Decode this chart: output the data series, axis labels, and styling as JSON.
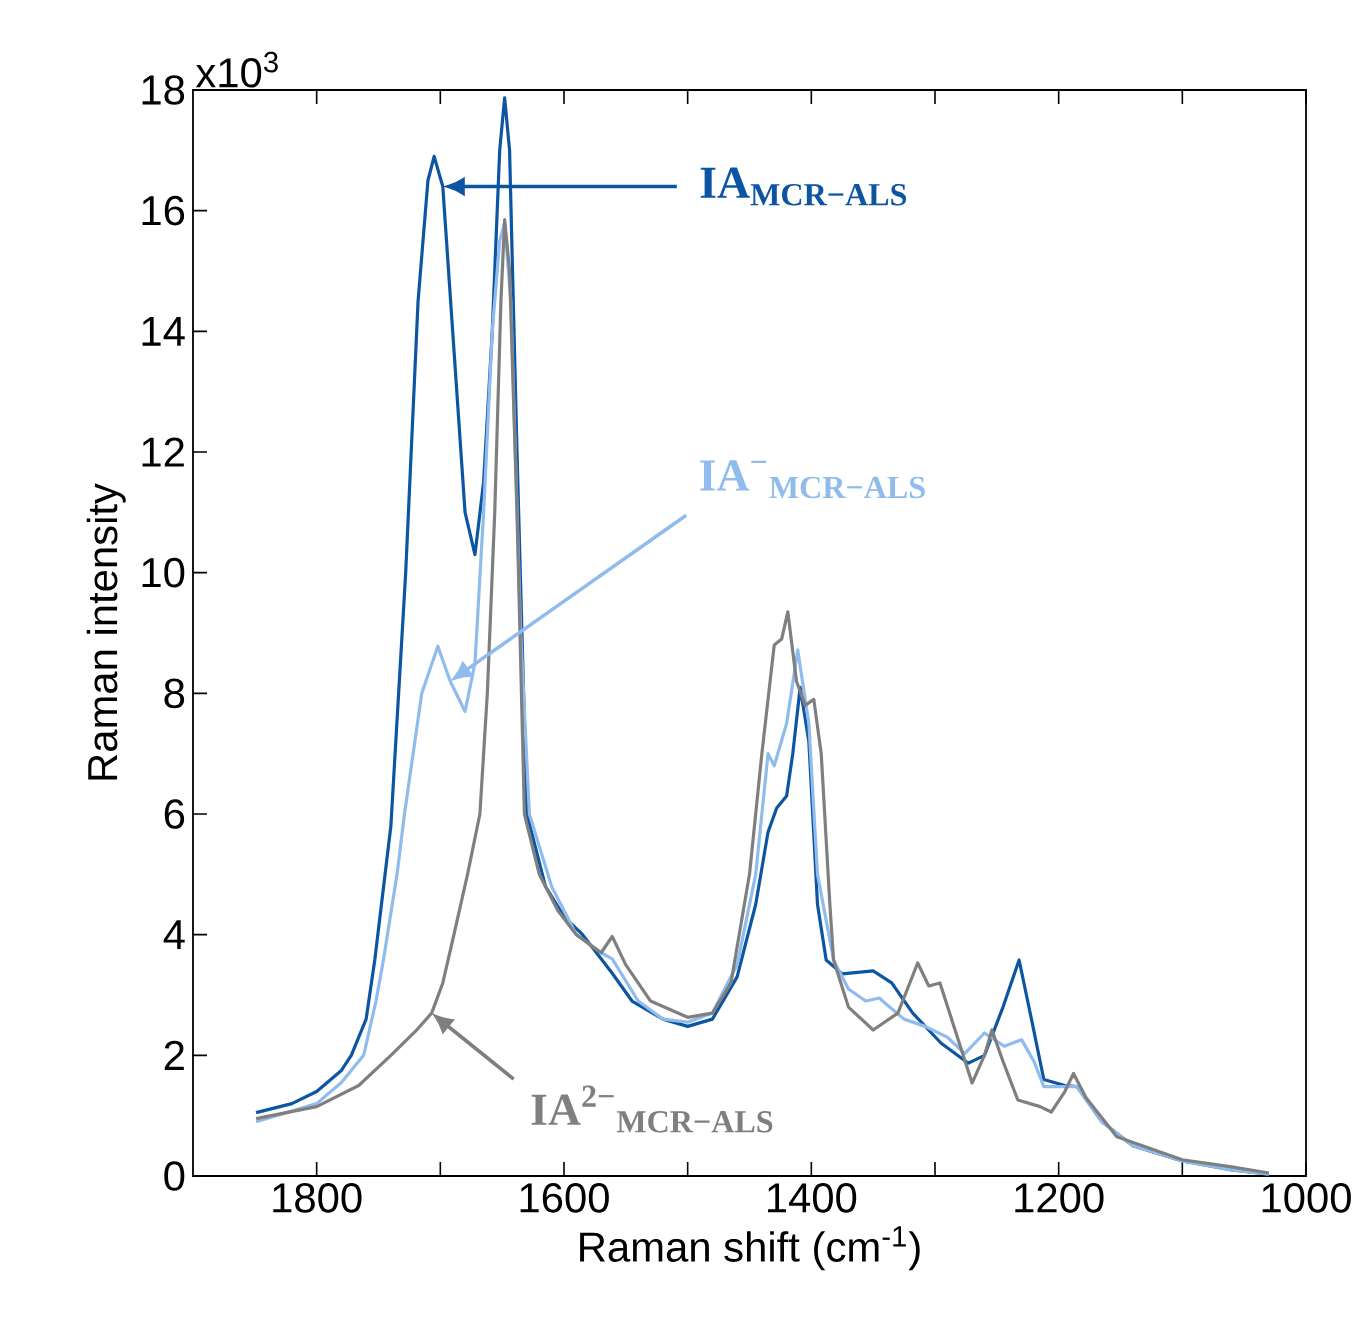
{
  "chart_data": {
    "type": "line",
    "xlabel": "Raman shift (cm$^{-1}$)",
    "ylabel": "Raman intensity",
    "xlim": [
      1900,
      1000
    ],
    "ylim": [
      0,
      18
    ],
    "xticks": [
      1800,
      {
        "value": 1700,
        "label": null
      },
      1600,
      {
        "value": 1500,
        "label": null
      },
      1400,
      {
        "value": 1300,
        "label": null
      },
      1200,
      {
        "value": 1100,
        "label": null
      },
      1000
    ],
    "yticks": [
      0,
      2,
      4,
      6,
      8,
      10,
      12,
      14,
      16,
      18
    ],
    "grid": false,
    "marker": "none",
    "line_style": "solid",
    "annotations": [
      "x10$^{3}$"
    ],
    "series": [
      {
        "name": "IA$_{MCR−ALS}$",
        "color": "#0b55a3",
        "x": [
          1849,
          1820,
          1800,
          1780,
          1772,
          1760,
          1753,
          1740,
          1728,
          1718,
          1710,
          1705,
          1698,
          1690,
          1680,
          1672,
          1665,
          1658,
          1652,
          1648,
          1644,
          1638,
          1630,
          1615,
          1600,
          1585,
          1570,
          1561,
          1545,
          1520,
          1500,
          1480,
          1460,
          1445,
          1435,
          1428,
          1420,
          1415,
          1409,
          1402,
          1395,
          1388,
          1375,
          1350,
          1335,
          1318,
          1295,
          1273,
          1260,
          1245,
          1232,
          1222,
          1212,
          1195,
          1185,
          1165,
          1140,
          1100,
          1060,
          1030
        ],
        "values": [
          1.05,
          1.2,
          1.4,
          1.75,
          2.0,
          2.6,
          3.58,
          5.8,
          10.0,
          14.5,
          16.5,
          16.9,
          16.4,
          14.0,
          11.0,
          10.3,
          11.5,
          14.0,
          17.0,
          17.87,
          17.0,
          12.0,
          6.0,
          4.8,
          4.3,
          4.0,
          3.6,
          3.36,
          2.9,
          2.6,
          2.48,
          2.6,
          3.3,
          4.5,
          5.7,
          6.1,
          6.3,
          7.0,
          8.1,
          7.2,
          4.5,
          3.58,
          3.35,
          3.4,
          3.2,
          2.7,
          2.2,
          1.87,
          2.0,
          2.8,
          3.58,
          2.6,
          1.6,
          1.5,
          1.48,
          0.9,
          0.5,
          0.25,
          0.1,
          0.03
        ]
      },
      {
        "name": "IA$^{−}$$_{MCR−ALS}$",
        "color": "#8fbcec",
        "x": [
          1849,
          1800,
          1780,
          1762,
          1752,
          1746,
          1735,
          1729,
          1715,
          1702,
          1692,
          1680,
          1672,
          1665,
          1658,
          1652,
          1648,
          1643,
          1635,
          1628,
          1610,
          1590,
          1570,
          1561,
          1540,
          1520,
          1500,
          1480,
          1460,
          1445,
          1435,
          1430,
          1420,
          1411,
          1402,
          1395,
          1382,
          1370,
          1356,
          1345,
          1340,
          1325,
          1308,
          1290,
          1276,
          1260,
          1244,
          1230,
          1220,
          1212,
          1185,
          1165,
          1140,
          1100,
          1060,
          1030
        ],
        "values": [
          0.9,
          1.2,
          1.55,
          2.0,
          2.9,
          3.58,
          5.0,
          6.0,
          8.0,
          8.78,
          8.2,
          7.7,
          8.5,
          11.0,
          14.0,
          15.5,
          15.8,
          14.5,
          9.0,
          6.0,
          4.8,
          4.0,
          3.7,
          3.6,
          2.9,
          2.6,
          2.55,
          2.7,
          3.5,
          5.0,
          7.0,
          6.8,
          7.5,
          8.72,
          7.5,
          5.0,
          3.58,
          3.1,
          2.9,
          2.95,
          2.86,
          2.6,
          2.48,
          2.3,
          2.03,
          2.37,
          2.15,
          2.26,
          1.9,
          1.48,
          1.48,
          0.9,
          0.5,
          0.25,
          0.1,
          0.03
        ]
      },
      {
        "name": "IA$^{2−}$$_{MCR−ALS}$",
        "color": "#7f7f7f",
        "x": [
          1849,
          1800,
          1766,
          1740,
          1720,
          1707,
          1698,
          1689,
          1678,
          1668,
          1662,
          1656,
          1651,
          1648,
          1644,
          1638,
          1632,
          1620,
          1605,
          1590,
          1570,
          1561,
          1550,
          1530,
          1500,
          1480,
          1465,
          1450,
          1440,
          1430,
          1424,
          1419,
          1412,
          1405,
          1398,
          1392,
          1385,
          1382,
          1370,
          1350,
          1330,
          1314,
          1305,
          1296,
          1285,
          1270,
          1260,
          1254,
          1245,
          1233,
          1215,
          1206,
          1195,
          1188,
          1178,
          1153,
          1100,
          1060,
          1030
        ],
        "values": [
          0.95,
          1.15,
          1.5,
          2.0,
          2.4,
          2.7,
          3.2,
          4.0,
          5.0,
          6.0,
          8.0,
          11.0,
          14.5,
          15.85,
          15.0,
          11.0,
          6.0,
          5.0,
          4.4,
          4.0,
          3.7,
          3.97,
          3.5,
          2.9,
          2.63,
          2.7,
          3.2,
          5.0,
          7.0,
          8.8,
          8.9,
          9.35,
          8.2,
          7.8,
          7.9,
          7.0,
          4.5,
          3.58,
          2.8,
          2.42,
          2.7,
          3.53,
          3.15,
          3.2,
          2.5,
          1.54,
          2.0,
          2.42,
          1.9,
          1.26,
          1.15,
          1.06,
          1.4,
          1.7,
          1.3,
          0.65,
          0.27,
          0.15,
          0.05
        ]
      }
    ]
  }
}
